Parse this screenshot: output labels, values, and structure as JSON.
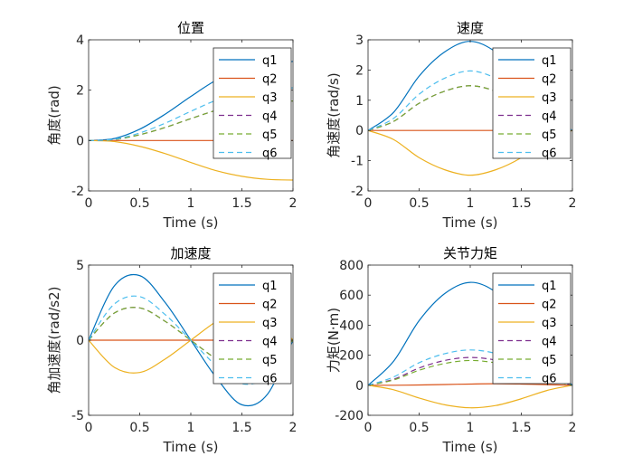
{
  "chart_data": [
    {
      "type": "line",
      "title": "位置",
      "xlabel": "Time (s)",
      "ylabel": "角度(rad)",
      "xlim": [
        0,
        2
      ],
      "ylim": [
        -2,
        4
      ],
      "xticks": [
        0,
        0.5,
        1,
        1.5,
        2
      ],
      "xtick_labels": [
        "0",
        "0.5",
        "1",
        "1.5",
        "2"
      ],
      "yticks": [
        -2,
        0,
        2,
        4
      ],
      "ytick_labels": [
        "-2",
        "0",
        "2",
        "4"
      ],
      "legend_position": "top-right",
      "x": [
        0,
        0.25,
        0.5,
        0.75,
        1,
        1.25,
        1.5,
        1.75,
        2
      ],
      "series": [
        {
          "name": "q1",
          "color": "#0072BD",
          "dash": "solid",
          "values": [
            0,
            0.08,
            0.45,
            1.05,
            1.75,
            2.4,
            2.85,
            3.08,
            3.14
          ]
        },
        {
          "name": "q2",
          "color": "#D95319",
          "dash": "solid",
          "values": [
            0,
            0,
            0,
            0,
            0,
            0,
            0,
            0,
            0
          ]
        },
        {
          "name": "q3",
          "color": "#EDB120",
          "dash": "solid",
          "values": [
            0,
            -0.04,
            -0.23,
            -0.52,
            -0.87,
            -1.2,
            -1.42,
            -1.54,
            -1.57
          ]
        },
        {
          "name": "q4",
          "color": "#7E2F8E",
          "dash": "dashed",
          "values": [
            0,
            0.04,
            0.23,
            0.52,
            0.87,
            1.2,
            1.42,
            1.54,
            1.57
          ]
        },
        {
          "name": "q5",
          "color": "#77AC30",
          "dash": "dashed",
          "values": [
            0,
            0.04,
            0.23,
            0.52,
            0.87,
            1.2,
            1.42,
            1.54,
            1.57
          ]
        },
        {
          "name": "q6",
          "color": "#4DBEEE",
          "dash": "dashed",
          "values": [
            0,
            0.05,
            0.3,
            0.69,
            1.16,
            1.6,
            1.89,
            2.05,
            2.09
          ]
        }
      ]
    },
    {
      "type": "line",
      "title": "速度",
      "xlabel": "Time (s)",
      "ylabel": "角速度(rad/s)",
      "xlim": [
        0,
        2
      ],
      "ylim": [
        -2,
        3
      ],
      "xticks": [
        0,
        0.5,
        1,
        1.5,
        2
      ],
      "xtick_labels": [
        "0",
        "0.5",
        "1",
        "1.5",
        "2"
      ],
      "yticks": [
        -2,
        -1,
        0,
        1,
        2,
        3
      ],
      "ytick_labels": [
        "-2",
        "-1",
        "0",
        "1",
        "2",
        "3"
      ],
      "legend_position": "top-right",
      "x": [
        0,
        0.25,
        0.5,
        0.75,
        1,
        1.25,
        1.5,
        1.75,
        2
      ],
      "series": [
        {
          "name": "q1",
          "color": "#0072BD",
          "dash": "solid",
          "values": [
            0,
            0.6,
            1.8,
            2.6,
            2.95,
            2.6,
            1.8,
            0.6,
            0
          ]
        },
        {
          "name": "q2",
          "color": "#D95319",
          "dash": "solid",
          "values": [
            0,
            0,
            0,
            0,
            0,
            0,
            0,
            0,
            0
          ]
        },
        {
          "name": "q3",
          "color": "#EDB120",
          "dash": "solid",
          "values": [
            0,
            -0.3,
            -0.9,
            -1.3,
            -1.48,
            -1.3,
            -0.9,
            -0.3,
            0
          ]
        },
        {
          "name": "q4",
          "color": "#7E2F8E",
          "dash": "dashed",
          "values": [
            0,
            0.3,
            0.9,
            1.3,
            1.48,
            1.3,
            0.9,
            0.3,
            0
          ]
        },
        {
          "name": "q5",
          "color": "#77AC30",
          "dash": "dashed",
          "values": [
            0,
            0.3,
            0.9,
            1.3,
            1.48,
            1.3,
            0.9,
            0.3,
            0
          ]
        },
        {
          "name": "q6",
          "color": "#4DBEEE",
          "dash": "dashed",
          "values": [
            0,
            0.4,
            1.2,
            1.73,
            1.97,
            1.73,
            1.2,
            0.4,
            0
          ]
        }
      ]
    },
    {
      "type": "line",
      "title": "加速度",
      "xlabel": "Time (s)",
      "ylabel": "角加速度(rad/s2)",
      "xlim": [
        0,
        2
      ],
      "ylim": [
        -5,
        5
      ],
      "xticks": [
        0,
        0.5,
        1,
        1.5,
        2
      ],
      "xtick_labels": [
        "0",
        "0.5",
        "1",
        "1.5",
        "2"
      ],
      "yticks": [
        -5,
        0,
        5
      ],
      "ytick_labels": [
        "-5",
        "0",
        "5"
      ],
      "legend_position": "top-right",
      "x": [
        0,
        0.25,
        0.5,
        0.75,
        1,
        1.25,
        1.5,
        1.75,
        2
      ],
      "series": [
        {
          "name": "q1",
          "color": "#0072BD",
          "dash": "solid",
          "values": [
            0,
            3.6,
            4.3,
            2.5,
            0,
            -2.5,
            -4.3,
            -3.6,
            0
          ]
        },
        {
          "name": "q2",
          "color": "#D95319",
          "dash": "solid",
          "values": [
            0,
            0,
            0,
            0,
            0,
            0,
            0,
            0,
            0
          ]
        },
        {
          "name": "q3",
          "color": "#EDB120",
          "dash": "solid",
          "values": [
            0,
            -1.8,
            -2.15,
            -1.25,
            0,
            1.25,
            2.15,
            1.8,
            0
          ]
        },
        {
          "name": "q4",
          "color": "#7E2F8E",
          "dash": "dashed",
          "values": [
            0,
            1.8,
            2.15,
            1.25,
            0,
            -1.25,
            -2.15,
            -1.8,
            0
          ]
        },
        {
          "name": "q5",
          "color": "#77AC30",
          "dash": "dashed",
          "values": [
            0,
            1.8,
            2.15,
            1.25,
            0,
            -1.25,
            -2.15,
            -1.8,
            0
          ]
        },
        {
          "name": "q6",
          "color": "#4DBEEE",
          "dash": "dashed",
          "values": [
            0,
            2.4,
            2.9,
            1.7,
            0,
            -1.7,
            -2.9,
            -2.4,
            0
          ]
        }
      ]
    },
    {
      "type": "line",
      "title": "关节力矩",
      "xlabel": "Time (s)",
      "ylabel": "力矩(N·m)",
      "xlim": [
        0,
        2
      ],
      "ylim": [
        -200,
        800
      ],
      "xticks": [
        0,
        0.5,
        1,
        1.5,
        2
      ],
      "xtick_labels": [
        "0",
        "0.5",
        "1",
        "1.5",
        "2"
      ],
      "yticks": [
        -200,
        0,
        200,
        400,
        600,
        800
      ],
      "ytick_labels": [
        "-200",
        "0",
        "200",
        "400",
        "600",
        "800"
      ],
      "legend_position": "top-right",
      "x": [
        0,
        0.25,
        0.5,
        0.75,
        1,
        1.25,
        1.5,
        1.75,
        2
      ],
      "series": [
        {
          "name": "q1",
          "color": "#0072BD",
          "dash": "solid",
          "values": [
            0,
            160,
            430,
            610,
            685,
            620,
            440,
            170,
            0
          ]
        },
        {
          "name": "q2",
          "color": "#D95319",
          "dash": "solid",
          "values": [
            0,
            0,
            2,
            5,
            8,
            10,
            8,
            4,
            0
          ]
        },
        {
          "name": "q3",
          "color": "#EDB120",
          "dash": "solid",
          "values": [
            0,
            -30,
            -85,
            -130,
            -150,
            -135,
            -90,
            -35,
            0
          ]
        },
        {
          "name": "q4",
          "color": "#7E2F8E",
          "dash": "dashed",
          "values": [
            0,
            40,
            115,
            165,
            185,
            167,
            118,
            42,
            0
          ]
        },
        {
          "name": "q5",
          "color": "#77AC30",
          "dash": "dashed",
          "values": [
            0,
            35,
            100,
            145,
            165,
            148,
            102,
            37,
            0
          ]
        },
        {
          "name": "q6",
          "color": "#4DBEEE",
          "dash": "dashed",
          "values": [
            0,
            55,
            150,
            210,
            235,
            212,
            152,
            57,
            0
          ]
        }
      ]
    }
  ]
}
